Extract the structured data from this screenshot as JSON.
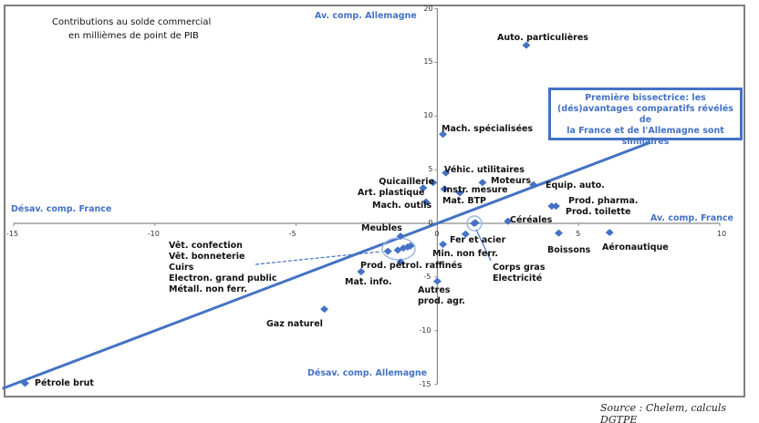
{
  "chart_data": {
    "type": "scatter",
    "title": [
      "Contributions au solde commercial",
      "en millièmes de point de PIB"
    ],
    "xlim": [
      -15,
      10
    ],
    "ylim": [
      -15,
      20
    ],
    "xticks": [
      -15,
      -10,
      -5,
      0,
      5,
      10
    ],
    "yticks": [
      20,
      15,
      10,
      5,
      0,
      -5,
      -10,
      -15
    ],
    "grid": false,
    "marker_color": "#4472c4",
    "quadrant_labels": {
      "top": "Av. comp. Allemagne",
      "bottom": "Désav. comp. Allemagne",
      "left": "Désav. comp. France",
      "right": "Av. comp. France"
    },
    "reference_line": {
      "name": "Première bissectrice",
      "slope": 1,
      "intercept": 0
    },
    "callout": [
      "Première bissectrice: les",
      "(dés)avantages comparatifs révélés de",
      "la France et de l'Allemagne sont",
      "similaires"
    ],
    "points": [
      {
        "label": "Auto. particulières",
        "x": 3.15,
        "y": 16.6
      },
      {
        "label": "Mach. spécialisées",
        "x": 0.2,
        "y": 8.3
      },
      {
        "label": "Véhic. utilitaires",
        "x": 0.3,
        "y": 4.7
      },
      {
        "label": "Moteurs",
        "x": 1.6,
        "y": 3.8
      },
      {
        "label": "Quicaillerie",
        "x": -0.15,
        "y": 3.8
      },
      {
        "label": "Art. plastique",
        "x": -0.5,
        "y": 3.3
      },
      {
        "label": "Instr. mesure",
        "x": 0.25,
        "y": 3.2
      },
      {
        "label": "Mat. BTP",
        "x": 0.8,
        "y": 2.85
      },
      {
        "label": "Equip. auto.",
        "x": 3.4,
        "y": 3.6
      },
      {
        "label": "Mach. outils",
        "x": -0.4,
        "y": 2.0
      },
      {
        "label": "Prod. pharma.",
        "x": 4.05,
        "y": 1.6
      },
      {
        "label": "Prod. toilette",
        "x": 4.2,
        "y": 1.6
      },
      {
        "label": "Céréales",
        "x": 2.5,
        "y": 0.2
      },
      {
        "label": "Corps gras",
        "x": 1.3,
        "y": 0.0
      },
      {
        "label": "Electricité",
        "x": 1.35,
        "y": 0.05
      },
      {
        "label": "Fer et acier",
        "x": 1.0,
        "y": -1.0
      },
      {
        "label": "Min. non ferr.",
        "x": 0.2,
        "y": -1.95
      },
      {
        "label": "Meubles",
        "x": -1.3,
        "y": -1.2
      },
      {
        "label": "Vêt. confection",
        "x": -1.75,
        "y": -2.6
      },
      {
        "label": "Vêt. bonneterie",
        "x": -1.4,
        "y": -2.5
      },
      {
        "label": "Cuirs",
        "x": -1.2,
        "y": -2.3
      },
      {
        "label": "Electron. grand public",
        "x": -1.05,
        "y": -2.2
      },
      {
        "label": "Métall. non ferr.",
        "x": -0.95,
        "y": -2.1
      },
      {
        "label": "Prod. pétrol. raffinés",
        "x": -1.3,
        "y": -3.6
      },
      {
        "label": "Mat. info.",
        "x": -2.7,
        "y": -4.5
      },
      {
        "label": "Autres prod. agr.",
        "x": 0.0,
        "y": -5.4
      },
      {
        "label": "Gaz naturel",
        "x": -4.0,
        "y": -8.0
      },
      {
        "label": "Aéronautique",
        "x": 6.1,
        "y": -0.85
      },
      {
        "label": "Boissons",
        "x": 4.3,
        "y": -0.9
      },
      {
        "label": "Pétrole brut",
        "x": -14.6,
        "y": -14.9
      }
    ]
  },
  "source": "Source : Chelem, calculs DGTPE",
  "extra_labels": {
    "autres_1": "Autres",
    "autres_2": "prod. agr."
  }
}
